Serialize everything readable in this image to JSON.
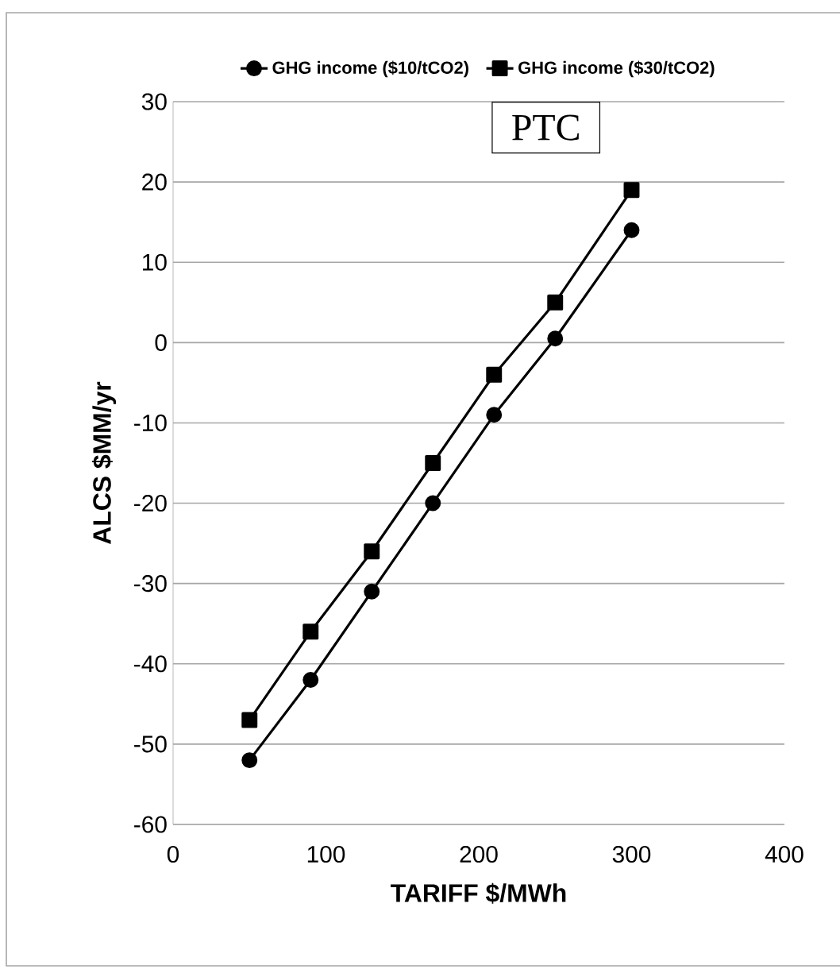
{
  "chart_data": {
    "type": "line",
    "xlabel": "TARIFF $/MWh",
    "ylabel": "ALCS $MM/yr",
    "x": [
      50,
      90,
      130,
      170,
      210,
      250,
      300
    ],
    "series": [
      {
        "name": "GHG income ($10/tCO2)",
        "color": "#000000",
        "marker": "circle",
        "values": [
          -52,
          -42,
          -31,
          -20,
          -9,
          0.5,
          14
        ]
      },
      {
        "name": "GHG income ($30/tCO2)",
        "color": "#000000",
        "marker": "square",
        "values": [
          -47,
          -36,
          -26,
          -15,
          -4,
          5,
          19
        ]
      }
    ],
    "xlim": [
      0,
      400
    ],
    "xticks": [
      0,
      100,
      200,
      300,
      400
    ],
    "ylim": [
      -60,
      30
    ],
    "yticks": [
      -60,
      -50,
      -40,
      -30,
      -20,
      -10,
      0,
      10,
      20,
      30
    ],
    "grid": "y",
    "legend": "top",
    "line_style": "solid",
    "annotations": [
      "PTC"
    ]
  }
}
